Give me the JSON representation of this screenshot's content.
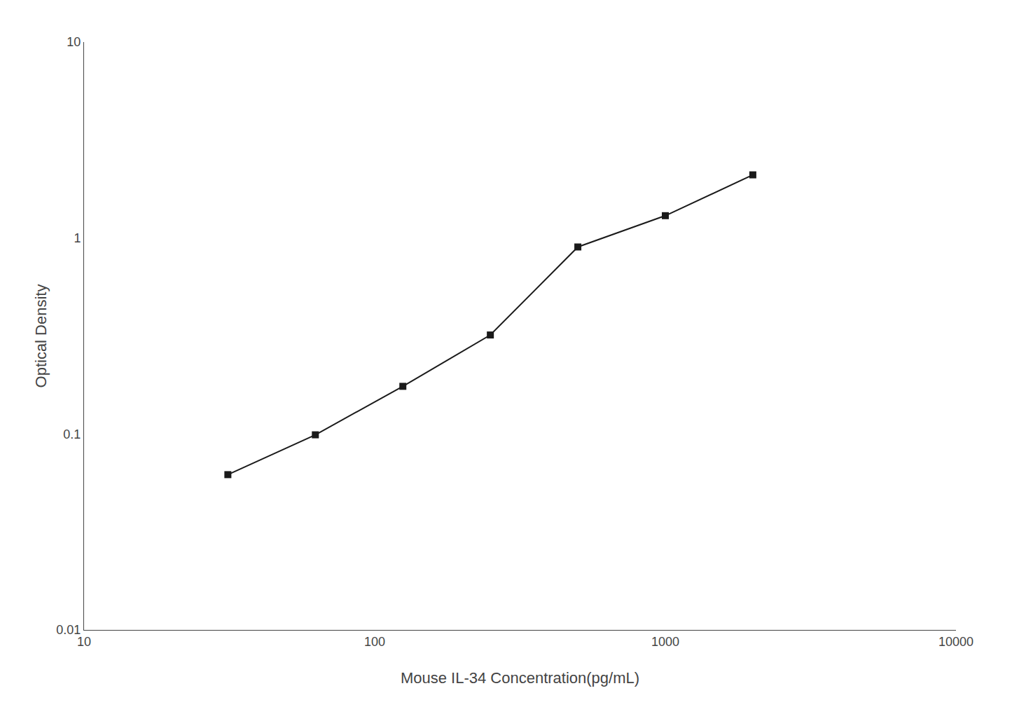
{
  "chart_data": {
    "type": "line",
    "xlabel": "Mouse IL-34 Concentration(pg/mL)",
    "ylabel": "Optical Density",
    "x": [
      31.25,
      62.5,
      125,
      250,
      500,
      1000,
      2000
    ],
    "values": [
      0.062,
      0.099,
      0.175,
      0.32,
      0.9,
      1.3,
      2.1
    ],
    "xlim": [
      10,
      10000
    ],
    "ylim": [
      0.01,
      10
    ],
    "xticks": [
      10,
      100,
      1000,
      10000
    ],
    "yticks": [
      0.01,
      0.1,
      1,
      10
    ],
    "log": true,
    "grid": false,
    "color": "#1a1a1a",
    "marker": "square",
    "line_style": "solid"
  }
}
